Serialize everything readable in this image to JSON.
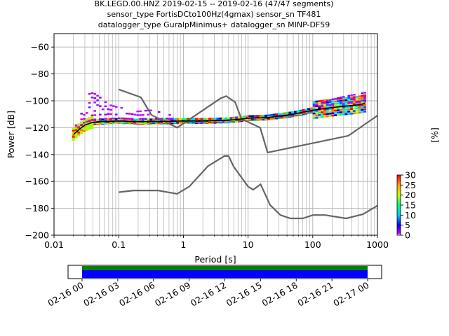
{
  "title": {
    "line1": "BK.LEGD.00.HNZ   2019-02-15 -- 2019-02-16  (47/47 segments)",
    "line2": "sensor_type FortisDCto100Hz(4gmax) sensor_sn TF481",
    "line3": "datalogger_type GuralpMinimus+ datalogger_sn MINP-DF59"
  },
  "chart_data": {
    "type": "heatmap",
    "xlabel": "Period [s]",
    "ylabel": "Power [dB]",
    "x_scale": "log",
    "xlim": [
      0.01,
      1000
    ],
    "ylim": [
      -200,
      -50
    ],
    "x_ticks": [
      {
        "value": 0.01,
        "label": "0.01"
      },
      {
        "value": 0.1,
        "label": "0.1"
      },
      {
        "value": 1,
        "label": "1"
      },
      {
        "value": 10,
        "label": "10"
      },
      {
        "value": 100,
        "label": "100"
      },
      {
        "value": 1000,
        "label": "1000"
      }
    ],
    "y_ticks": [
      {
        "value": -60,
        "label": "−60"
      },
      {
        "value": -80,
        "label": "−80"
      },
      {
        "value": -100,
        "label": "−100"
      },
      {
        "value": -120,
        "label": "−120"
      },
      {
        "value": -140,
        "label": "−140"
      },
      {
        "value": -160,
        "label": "−160"
      },
      {
        "value": -180,
        "label": "−180"
      },
      {
        "value": -200,
        "label": "−200"
      }
    ],
    "grid": true,
    "reference_curves": {
      "nhnm": [
        [
          0.1,
          -91.5
        ],
        [
          0.22,
          -97.4
        ],
        [
          0.32,
          -110.5
        ],
        [
          0.8,
          -120
        ],
        [
          3.8,
          -98
        ],
        [
          4.6,
          -96.5
        ],
        [
          6.3,
          -101
        ],
        [
          7.9,
          -113.5
        ],
        [
          15.4,
          -120
        ],
        [
          20,
          -138.5
        ],
        [
          354.8,
          -126
        ],
        [
          1000,
          -111
        ]
      ],
      "nlnm": [
        [
          0.1,
          -168
        ],
        [
          0.17,
          -166.7
        ],
        [
          0.4,
          -166.7
        ],
        [
          0.8,
          -169.2
        ],
        [
          1.24,
          -163.7
        ],
        [
          2.4,
          -148.6
        ],
        [
          4.3,
          -141.1
        ],
        [
          5,
          -141.1
        ],
        [
          6,
          -149
        ],
        [
          10,
          -163.8
        ],
        [
          12,
          -166.2
        ],
        [
          15.6,
          -162.1
        ],
        [
          21.9,
          -177.5
        ],
        [
          31.6,
          -185
        ],
        [
          45,
          -187.5
        ],
        [
          70,
          -187.5
        ],
        [
          101,
          -185
        ],
        [
          154,
          -185
        ],
        [
          328,
          -187.5
        ],
        [
          600,
          -184.4
        ],
        [
          1000,
          -178
        ]
      ]
    },
    "median_curve": [
      [
        0.02,
        -125
      ],
      [
        0.025,
        -121
      ],
      [
        0.03,
        -118
      ],
      [
        0.04,
        -116
      ],
      [
        0.05,
        -115.5
      ],
      [
        0.1,
        -115
      ],
      [
        0.2,
        -115.5
      ],
      [
        0.5,
        -115.3
      ],
      [
        1,
        -115
      ],
      [
        2,
        -115
      ],
      [
        5,
        -114.5
      ],
      [
        10,
        -113
      ],
      [
        20,
        -112.5
      ],
      [
        50,
        -110
      ],
      [
        100,
        -107
      ],
      [
        200,
        -105
      ],
      [
        500,
        -103
      ],
      [
        640,
        -102
      ]
    ],
    "outlier_band": [
      [
        0.02,
        -122
      ],
      [
        0.025,
        -113
      ],
      [
        0.03,
        -103
      ],
      [
        0.035,
        -95
      ],
      [
        0.04,
        -94
      ],
      [
        0.05,
        -97
      ],
      [
        0.07,
        -103
      ],
      [
        0.1,
        -105
      ],
      [
        0.15,
        -106
      ],
      [
        0.2,
        -108
      ],
      [
        0.3,
        -107
      ],
      [
        0.5,
        -109
      ],
      [
        1,
        -114
      ],
      [
        5,
        -114
      ],
      [
        10,
        -113
      ],
      [
        20,
        -112
      ],
      [
        50,
        -109
      ],
      [
        100,
        -104
      ],
      [
        200,
        -99
      ],
      [
        300,
        -97
      ],
      [
        640,
        -94
      ]
    ],
    "colorbar": {
      "label": "[%]",
      "min": 0,
      "max": 30,
      "ticks": [
        {
          "value": 0,
          "label": "0"
        },
        {
          "value": 5,
          "label": "5"
        },
        {
          "value": 10,
          "label": "10"
        },
        {
          "value": 15,
          "label": "15"
        },
        {
          "value": 20,
          "label": "20"
        },
        {
          "value": 25,
          "label": "25"
        },
        {
          "value": 30,
          "label": "30"
        }
      ]
    },
    "colors": {
      "nhnm_nlnm": "#666666",
      "median": "#000000",
      "grid": "#b0b0b0",
      "coverage_green": "#008000",
      "coverage_blue": "#0000ff"
    }
  },
  "timeline": {
    "labels": [
      "02-16 00",
      "02-16 03",
      "02-16 06",
      "02-16 09",
      "02-16 12",
      "02-16 15",
      "02-16 18",
      "02-16 21",
      "02-17 00"
    ],
    "coverage_fraction": 1.0
  }
}
